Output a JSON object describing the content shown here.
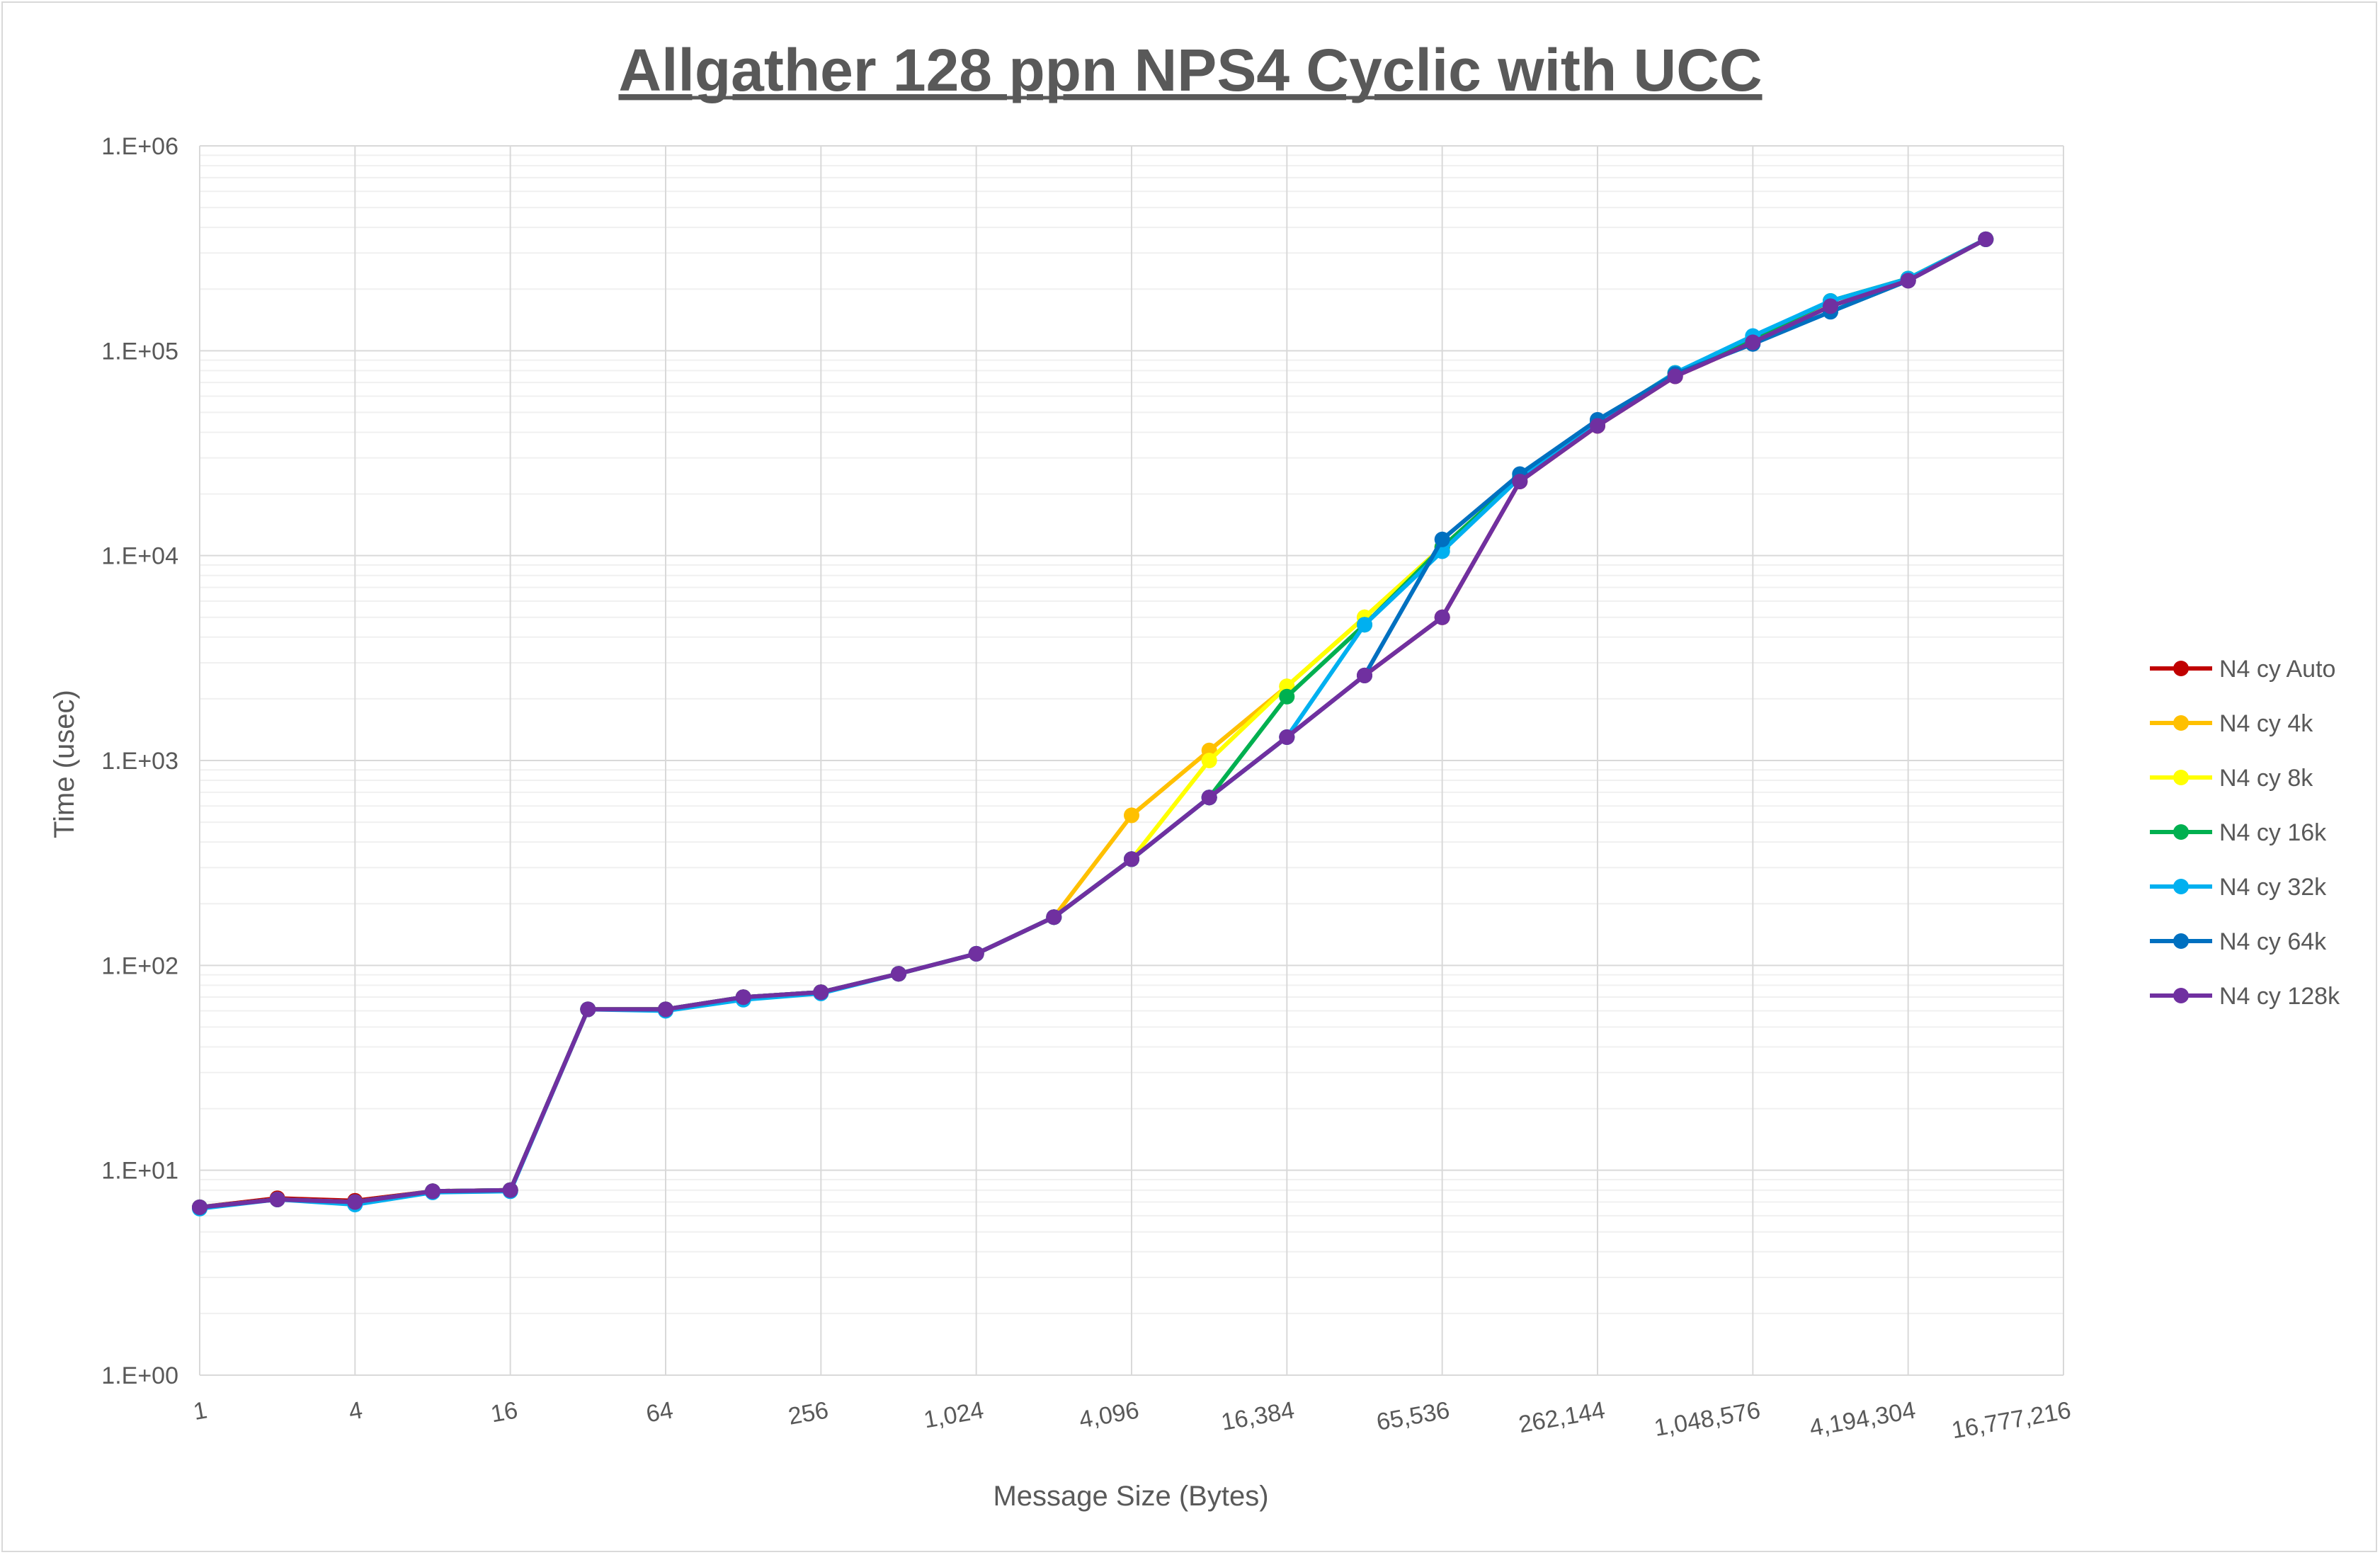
{
  "chart_data": {
    "type": "line",
    "title": "Allgather 128 ppn NPS4 Cyclic with UCC",
    "xlabel": "Message Size (Bytes)",
    "ylabel": "Time (usec)",
    "x_scale": "log2",
    "y_scale": "log10",
    "xlim": [
      1,
      16777216
    ],
    "ylim": [
      1,
      1000000
    ],
    "grid": true,
    "legend_position": "right",
    "x_tick_labels": [
      "1",
      "4",
      "16",
      "64",
      "256",
      "1,024",
      "4,096",
      "16,384",
      "65,536",
      "262,144",
      "1,048,576",
      "4,194,304",
      "16,777,216"
    ],
    "y_tick_labels": [
      "1.E+00",
      "1.E+01",
      "1.E+02",
      "1.E+03",
      "1.E+04",
      "1.E+05",
      "1.E+06"
    ],
    "x": [
      1,
      2,
      4,
      8,
      16,
      32,
      64,
      128,
      256,
      512,
      1024,
      2048,
      4096,
      8192,
      16384,
      32768,
      65536,
      131072,
      262144,
      524288,
      1048576,
      2097152,
      4194304,
      8388608
    ],
    "series": [
      {
        "name": "N4 cy Auto",
        "color": "#c00000",
        "values": [
          6.6,
          7.3,
          7.1,
          7.9,
          8.0,
          61,
          61,
          70,
          74,
          91,
          114,
          172,
          330,
          660,
          1300,
          2600,
          5000,
          23000,
          43000,
          75000,
          110000,
          165000,
          220000,
          350000
        ]
      },
      {
        "name": "N4 cy 4k",
        "color": "#ffc000",
        "values": [
          6.6,
          7.2,
          7.0,
          7.9,
          8.0,
          61,
          61,
          70,
          74,
          91,
          114,
          172,
          540,
          1120,
          2300,
          5000,
          11000,
          24000,
          45000,
          78000,
          115000,
          175000,
          225000,
          350000
        ]
      },
      {
        "name": "N4 cy 8k",
        "color": "#ffff00",
        "values": [
          6.6,
          7.2,
          7.0,
          7.9,
          8.0,
          61,
          61,
          70,
          74,
          91,
          114,
          172,
          330,
          1000,
          2300,
          5000,
          11000,
          24000,
          45000,
          78000,
          115000,
          175000,
          225000,
          350000
        ]
      },
      {
        "name": "N4 cy 16k",
        "color": "#00b050",
        "values": [
          6.6,
          7.2,
          7.0,
          7.9,
          8.0,
          61,
          61,
          70,
          74,
          91,
          114,
          172,
          330,
          660,
          2050,
          4600,
          11000,
          24000,
          45000,
          78000,
          115000,
          175000,
          225000,
          350000
        ]
      },
      {
        "name": "N4 cy 32k",
        "color": "#00b0f0",
        "values": [
          6.5,
          7.2,
          6.8,
          7.8,
          7.9,
          61,
          60,
          68,
          73,
          91,
          114,
          172,
          330,
          660,
          1300,
          4600,
          10500,
          24000,
          45000,
          78000,
          118000,
          175000,
          225000,
          350000
        ]
      },
      {
        "name": "N4 cy 64k",
        "color": "#0070c0",
        "values": [
          6.6,
          7.2,
          7.0,
          7.9,
          8.0,
          61,
          61,
          70,
          74,
          91,
          114,
          172,
          330,
          660,
          1300,
          2600,
          12000,
          25000,
          46000,
          77000,
          108000,
          155000,
          220000,
          350000
        ]
      },
      {
        "name": "N4 cy 128k",
        "color": "#7030a0",
        "values": [
          6.6,
          7.2,
          7.0,
          7.9,
          8.0,
          61,
          61,
          70,
          74,
          91,
          114,
          172,
          330,
          660,
          1300,
          2600,
          5000,
          23000,
          43000,
          75000,
          110000,
          165000,
          220000,
          350000
        ]
      }
    ]
  }
}
